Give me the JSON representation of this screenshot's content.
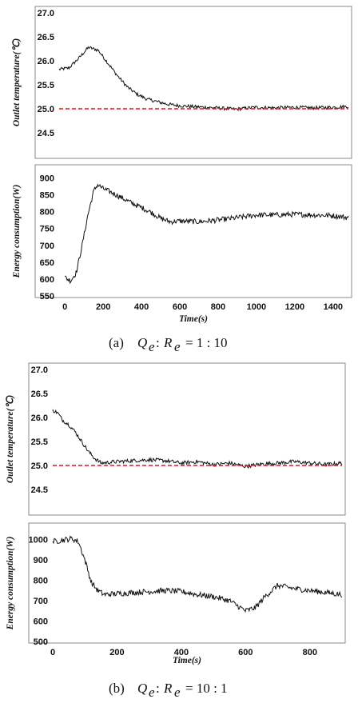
{
  "figure": {
    "captions": [
      {
        "label": "(a)",
        "expr": "Q_e : R_e = 1 : 10",
        "q": "Q",
        "r": "R",
        "sub": "e",
        "ratio": ": 1 : 10"
      },
      {
        "label": "(b)",
        "expr": "Q_e : R_e = 10 : 1",
        "q": "Q",
        "r": "R",
        "sub": "e",
        "ratio": ": 10 : 1"
      }
    ]
  },
  "colors": {
    "series": "#111111",
    "setpoint": "#cc1f1f"
  },
  "chart_data": [
    {
      "id": "a_temp",
      "type": "line",
      "ylabel": "Outlet temperature(℃)",
      "xlabel": "",
      "ylim": [
        24.0,
        27.0
      ],
      "yticks": [
        24.5,
        25.0,
        25.5,
        26.0,
        26.5,
        27.0
      ],
      "ytick_labels": [
        "24.5",
        "25.0",
        "25.5",
        "26.0",
        "26.5",
        "27.0"
      ],
      "xlim": [
        0,
        1480
      ],
      "xticks": [],
      "xtick_labels": [],
      "series": [
        {
          "x": [
            0,
            50,
            100,
            150,
            200,
            250,
            300,
            350,
            400,
            450,
            500,
            550,
            600,
            700,
            800,
            900,
            1000,
            1100,
            1200,
            1300,
            1400,
            1480
          ],
          "y": [
            25.82,
            25.85,
            26.05,
            26.28,
            26.22,
            25.95,
            25.68,
            25.45,
            25.3,
            25.2,
            25.15,
            25.1,
            25.07,
            25.04,
            25.02,
            24.99,
            25.03,
            25.02,
            25.03,
            25.02,
            25.03,
            25.05
          ]
        }
      ],
      "reference_line": {
        "y": 25.0,
        "style": "dashed"
      },
      "noise": 0.035
    },
    {
      "id": "a_energy",
      "type": "line",
      "ylabel": "Energy consumption(W)",
      "xlabel": "Time(s)",
      "ylim": [
        550,
        920
      ],
      "yticks": [
        550,
        600,
        650,
        700,
        750,
        800,
        850,
        900
      ],
      "ytick_labels": [
        "550",
        "600",
        "650",
        "700",
        "750",
        "800",
        "850",
        "900"
      ],
      "xlim": [
        -30,
        1480
      ],
      "xticks": [
        0,
        200,
        400,
        600,
        800,
        1000,
        1200,
        1400
      ],
      "xtick_labels": [
        "0",
        "200",
        "400",
        "600",
        "800",
        "1000",
        "1200",
        "1400"
      ],
      "series": [
        {
          "x": [
            0,
            30,
            60,
            90,
            120,
            150,
            170,
            200,
            250,
            300,
            350,
            400,
            450,
            500,
            550,
            600,
            700,
            800,
            900,
            1000,
            1100,
            1200,
            1300,
            1400,
            1480
          ],
          "y": [
            605,
            595,
            620,
            700,
            790,
            860,
            880,
            868,
            855,
            840,
            825,
            812,
            798,
            780,
            770,
            772,
            770,
            775,
            782,
            790,
            790,
            792,
            790,
            788,
            782
          ]
        }
      ],
      "noise": 8
    },
    {
      "id": "b_temp",
      "type": "line",
      "ylabel": "Outlet temperature(℃)",
      "xlabel": "",
      "ylim": [
        24.0,
        27.0
      ],
      "yticks": [
        24.5,
        25.0,
        25.5,
        26.0,
        26.5,
        27.0
      ],
      "ytick_labels": [
        "24.5",
        "25.0",
        "25.5",
        "26.0",
        "26.5",
        "27.0"
      ],
      "xlim": [
        0,
        900
      ],
      "xticks": [],
      "xtick_labels": [],
      "series": [
        {
          "x": [
            0,
            15,
            30,
            50,
            70,
            90,
            110,
            130,
            150,
            200,
            250,
            300,
            350,
            400,
            450,
            500,
            550,
            600,
            650,
            700,
            750,
            800,
            850,
            900
          ],
          "y": [
            26.15,
            26.1,
            25.95,
            25.85,
            25.7,
            25.5,
            25.3,
            25.15,
            25.05,
            25.08,
            25.1,
            25.12,
            25.1,
            25.05,
            25.08,
            25.02,
            25.05,
            24.98,
            25.03,
            25.05,
            25.08,
            25.05,
            25.02,
            25.05
          ]
        }
      ],
      "reference_line": {
        "y": 25.0,
        "style": "dashed"
      },
      "noise": 0.04
    },
    {
      "id": "b_energy",
      "type": "line",
      "ylabel": "Energy consumption(W)",
      "xlabel": "Time(s)",
      "ylim": [
        500,
        1050
      ],
      "yticks": [
        500,
        600,
        700,
        800,
        900,
        1000
      ],
      "ytick_labels": [
        "500",
        "600",
        "700",
        "800",
        "900",
        "1000"
      ],
      "xlim": [
        0,
        900
      ],
      "xticks": [
        0,
        200,
        400,
        600,
        800
      ],
      "xtick_labels": [
        "0",
        "200",
        "400",
        "600",
        "800"
      ],
      "series": [
        {
          "x": [
            0,
            20,
            40,
            60,
            80,
            100,
            120,
            140,
            160,
            200,
            250,
            300,
            350,
            400,
            450,
            500,
            550,
            580,
            600,
            630,
            660,
            700,
            750,
            800,
            850,
            900
          ],
          "y": [
            990,
            995,
            1000,
            1005,
            990,
            900,
            790,
            750,
            730,
            735,
            740,
            745,
            750,
            745,
            730,
            720,
            700,
            670,
            650,
            665,
            720,
            775,
            760,
            750,
            740,
            730
          ]
        }
      ],
      "noise": 14
    }
  ]
}
